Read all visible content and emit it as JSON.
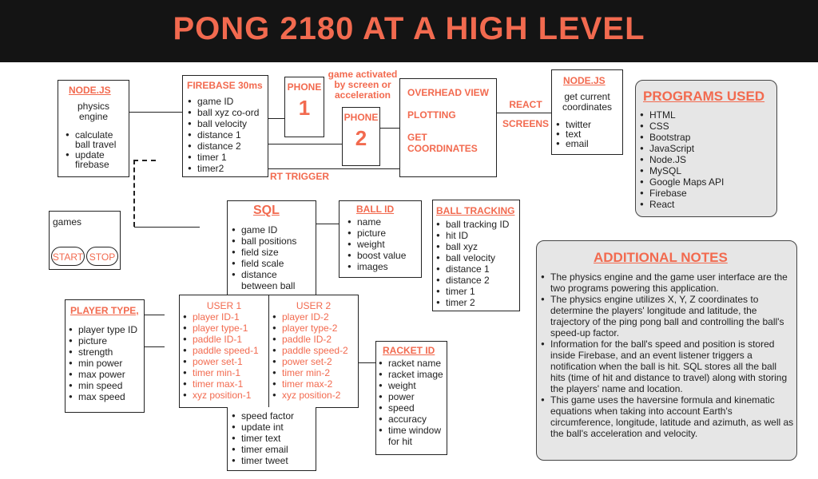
{
  "header": {
    "title": "PONG 2180 AT A HIGH LEVEL"
  },
  "node1": {
    "title": "NODE.JS",
    "subtitle": "physics engine",
    "items": [
      "calculate ball travel",
      "update firebase"
    ]
  },
  "firebase": {
    "title": "FIREBASE 30ms",
    "items": [
      "game ID",
      "ball xyz co-ord",
      "ball velocity",
      "distance 1",
      "distance 2",
      "timer 1",
      "timer2"
    ]
  },
  "phone1": {
    "label": "PHONE",
    "num": "1"
  },
  "phone2": {
    "label": "PHONE",
    "num": "2"
  },
  "game_activated": "game activated by screen or acceleration",
  "overhead": {
    "lines": [
      "OVERHEAD VIEW",
      "PLOTTING",
      "GET COORDINATES"
    ]
  },
  "react_label": "REACT",
  "screens_label": "SCREENS",
  "rt_trigger": "RT TRIGGER",
  "node2": {
    "title": "NODE.JS",
    "subtitle": "get current coordinates",
    "items": [
      "twitter",
      "text",
      "email"
    ]
  },
  "programs": {
    "title": "PROGRAMS USED",
    "items": [
      "HTML",
      "CSS",
      "Bootstrap",
      "JavaScript",
      "Node.JS",
      "MySQL",
      "Google Maps API",
      "Firebase",
      "React"
    ]
  },
  "games": {
    "label": "games",
    "start": "START",
    "stop": "STOP"
  },
  "sql": {
    "title": "SQL",
    "items": [
      "game ID",
      "ball positions",
      "field size",
      "field scale",
      "distance between ball"
    ]
  },
  "ballid": {
    "title": "BALL ID",
    "items": [
      "name",
      "picture",
      "weight",
      "boost value",
      "images"
    ]
  },
  "balltracking": {
    "title": "BALL TRACKING",
    "items": [
      "ball tracking ID",
      "hit ID",
      "ball xyz",
      "ball velocity",
      "distance 1",
      "distance 2",
      "timer 1",
      "timer 2"
    ]
  },
  "notes": {
    "title": "ADDITIONAL NOTES",
    "items": [
      "The physics engine and the game user interface are the two programs powering this application.",
      "The physics engine utilizes X, Y, Z coordinates to determine the players' longitude and latitude, the trajectory of the ping pong ball and controlling the ball's speed-up factor.",
      "Information for the ball's speed and position is stored inside Firebase, and an event listener triggers a notification when the ball is hit. SQL stores all the ball hits (time of hit and distance to travel) along with storing the players' name and location.",
      "This game uses the haversine formula and kinematic equations when taking into account Earth's circumference, longitude, latitude and azimuth, as well as the ball's acceleration and velocity."
    ]
  },
  "playertype": {
    "title": "PLAYER TYPE,",
    "items": [
      "player type ID",
      "picture",
      "strength",
      "min power",
      "max power",
      "min speed",
      "max speed"
    ]
  },
  "user1": {
    "title": "USER 1",
    "items": [
      "player ID-1",
      "player type-1",
      "paddle ID-1",
      "paddle speed-1",
      "power set-1",
      "timer min-1",
      "timer max-1",
      "xyz position-1"
    ]
  },
  "user2": {
    "title": "USER 2",
    "items": [
      "player ID-2",
      "player type-2",
      "paddle ID-2",
      "paddle speed-2",
      "power set-2",
      "timer min-2",
      "timer max-2",
      "xyz position-2"
    ]
  },
  "bottom": {
    "items": [
      "speed factor",
      "update int",
      "timer text",
      "timer email",
      "timer tweet"
    ]
  },
  "racket": {
    "title": "RACKET ID",
    "items": [
      "racket name",
      "racket image",
      "weight",
      "power",
      "speed",
      "accuracy",
      "time window for hit"
    ]
  }
}
